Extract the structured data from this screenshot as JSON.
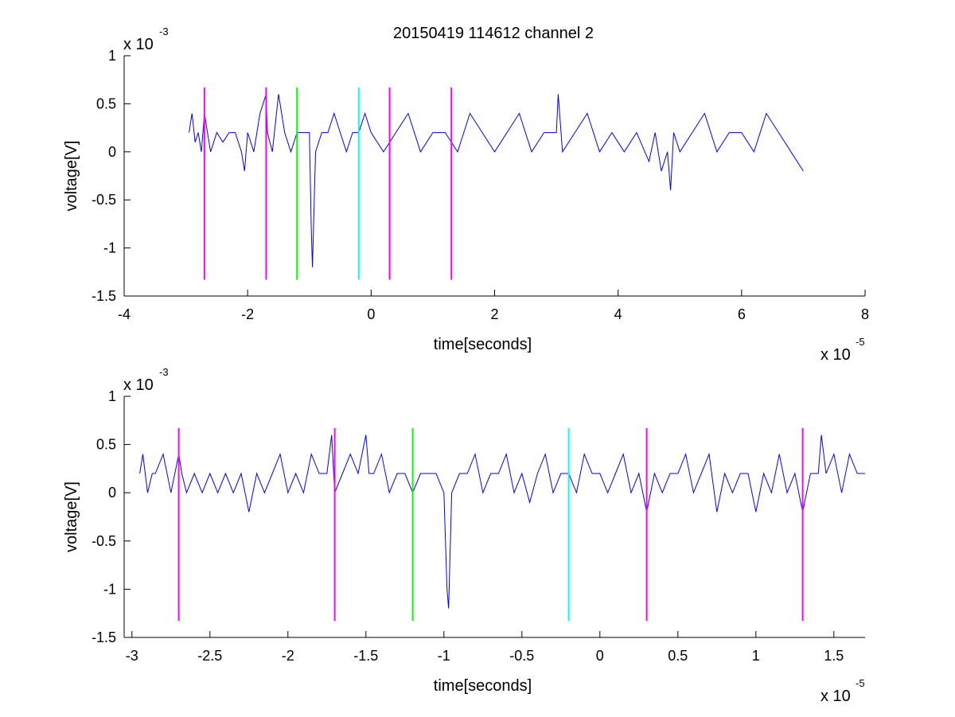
{
  "title": "20150419 114612 channel 2",
  "colors": {
    "trace": "#0000ff",
    "magenta": "#ff00ff",
    "green": "#00ff00",
    "cyan": "#00ffff",
    "axis": "#000000"
  },
  "chart_data": [
    {
      "type": "line",
      "xlabel": "time[seconds]",
      "ylabel": "voltage[V]",
      "x_multiplier": {
        "base": "x 10",
        "exp": "-5"
      },
      "y_multiplier": {
        "base": "x 10",
        "exp": "-3"
      },
      "xlim": [
        -4,
        8
      ],
      "ylim": [
        -1.5,
        1
      ],
      "xticks": [
        -4,
        -2,
        0,
        2,
        4,
        6,
        8
      ],
      "xtick_labels": [
        "-4",
        "-2",
        "0",
        "2",
        "4",
        "6",
        "8"
      ],
      "yticks": [
        -1.5,
        -1,
        -0.5,
        0,
        0.5,
        1
      ],
      "ytick_labels": [
        "-1.5",
        "-1",
        "-0.5",
        "0",
        "0.5",
        "1"
      ],
      "series": [
        {
          "color": "#0000ff",
          "x": [
            -2.95,
            -2.9,
            -2.85,
            -2.8,
            -2.75,
            -2.7,
            -2.65,
            -2.6,
            -2.5,
            -2.4,
            -2.3,
            -2.2,
            -2.1,
            -2.05,
            -2.0,
            -1.9,
            -1.8,
            -1.7,
            -1.68,
            -1.6,
            -1.5,
            -1.4,
            -1.3,
            -1.2,
            -1.1,
            -1.0,
            -0.97,
            -0.95,
            -0.9,
            -0.8,
            -0.7,
            -0.6,
            -0.5,
            -0.4,
            -0.3,
            -0.2,
            -0.1,
            0.0,
            0.2,
            0.4,
            0.6,
            0.8,
            1.0,
            1.2,
            1.4,
            1.6,
            1.8,
            2.0,
            2.2,
            2.4,
            2.6,
            2.8,
            3.0,
            3.03,
            3.1,
            3.3,
            3.5,
            3.7,
            3.9,
            4.1,
            4.3,
            4.5,
            4.6,
            4.7,
            4.8,
            4.85,
            4.9,
            5.0,
            5.2,
            5.4,
            5.6,
            5.8,
            6.0,
            6.2,
            6.4,
            6.6,
            6.8,
            7.0
          ],
          "y": [
            0.2,
            0.4,
            0.1,
            0.2,
            0.0,
            0.4,
            0.2,
            0.0,
            0.2,
            0.1,
            0.2,
            0.2,
            0.0,
            -0.2,
            0.2,
            0.0,
            0.4,
            0.6,
            0.2,
            0.0,
            0.6,
            0.2,
            0.0,
            0.2,
            0.2,
            0.2,
            -0.8,
            -1.2,
            0.0,
            0.2,
            0.2,
            0.4,
            0.2,
            0.0,
            0.2,
            0.2,
            0.4,
            0.2,
            0.0,
            0.2,
            0.4,
            0.0,
            0.2,
            0.2,
            0.0,
            0.4,
            0.2,
            0.0,
            0.2,
            0.4,
            0.0,
            0.2,
            0.2,
            0.6,
            0.0,
            0.2,
            0.4,
            0.0,
            0.2,
            0.0,
            0.2,
            -0.1,
            0.2,
            -0.2,
            0.0,
            -0.4,
            0.2,
            0.0,
            0.2,
            0.4,
            0.0,
            0.2,
            0.2,
            0.0,
            0.4,
            0.2,
            0.0,
            -0.2
          ]
        }
      ],
      "vlines": [
        {
          "x": -2.7,
          "color": "#ff00ff",
          "y0": -1.33,
          "y1": 0.67
        },
        {
          "x": -1.7,
          "color": "#ff00ff",
          "y0": -1.33,
          "y1": 0.67
        },
        {
          "x": -1.2,
          "color": "#00ff00",
          "y0": -1.33,
          "y1": 0.67
        },
        {
          "x": -0.2,
          "color": "#00ffff",
          "y0": -1.33,
          "y1": 0.67
        },
        {
          "x": 0.3,
          "color": "#ff00ff",
          "y0": -1.33,
          "y1": 0.67
        },
        {
          "x": 1.3,
          "color": "#ff00ff",
          "y0": -1.33,
          "y1": 0.67
        }
      ]
    },
    {
      "type": "line",
      "xlabel": "time[seconds]",
      "ylabel": "voltage[V]",
      "x_multiplier": {
        "base": "x 10",
        "exp": "-5"
      },
      "y_multiplier": {
        "base": "x 10",
        "exp": "-3"
      },
      "xlim": [
        -3.05,
        1.7
      ],
      "ylim": [
        -1.5,
        1
      ],
      "xticks": [
        -3,
        -2.5,
        -2,
        -1.5,
        -1,
        -0.5,
        0,
        0.5,
        1,
        1.5
      ],
      "xtick_labels": [
        "-3",
        "-2.5",
        "-2",
        "-1.5",
        "-1",
        "-0.5",
        "0",
        "0.5",
        "1",
        "1.5"
      ],
      "yticks": [
        -1.5,
        -1,
        -0.5,
        0,
        0.5,
        1
      ],
      "ytick_labels": [
        "-1.5",
        "-1",
        "-0.5",
        "0",
        "0.5",
        "1"
      ],
      "series": [
        {
          "color": "#0000ff",
          "x": [
            -2.95,
            -2.93,
            -2.9,
            -2.87,
            -2.85,
            -2.8,
            -2.75,
            -2.7,
            -2.68,
            -2.65,
            -2.6,
            -2.55,
            -2.5,
            -2.45,
            -2.4,
            -2.35,
            -2.3,
            -2.25,
            -2.2,
            -2.15,
            -2.1,
            -2.05,
            -2.0,
            -1.95,
            -1.9,
            -1.85,
            -1.8,
            -1.75,
            -1.72,
            -1.7,
            -1.65,
            -1.6,
            -1.55,
            -1.5,
            -1.48,
            -1.45,
            -1.4,
            -1.35,
            -1.3,
            -1.25,
            -1.2,
            -1.15,
            -1.1,
            -1.05,
            -1.0,
            -0.98,
            -0.97,
            -0.95,
            -0.9,
            -0.85,
            -0.8,
            -0.75,
            -0.7,
            -0.65,
            -0.6,
            -0.55,
            -0.5,
            -0.45,
            -0.4,
            -0.35,
            -0.3,
            -0.25,
            -0.2,
            -0.15,
            -0.1,
            -0.05,
            0.0,
            0.05,
            0.1,
            0.15,
            0.2,
            0.25,
            0.3,
            0.35,
            0.4,
            0.45,
            0.5,
            0.55,
            0.6,
            0.65,
            0.7,
            0.75,
            0.8,
            0.85,
            0.9,
            0.95,
            1.0,
            1.05,
            1.1,
            1.15,
            1.2,
            1.25,
            1.3,
            1.35,
            1.4,
            1.42,
            1.45,
            1.5,
            1.55,
            1.6,
            1.65,
            1.7
          ],
          "y": [
            0.2,
            0.4,
            0.0,
            0.2,
            0.2,
            0.4,
            0.0,
            0.4,
            0.2,
            0.0,
            0.2,
            0.0,
            0.2,
            0.0,
            0.2,
            0.0,
            0.2,
            -0.2,
            0.2,
            0.0,
            0.2,
            0.4,
            0.0,
            0.2,
            0.0,
            0.4,
            0.2,
            0.2,
            0.6,
            0.0,
            0.2,
            0.4,
            0.2,
            0.6,
            0.2,
            0.2,
            0.4,
            0.0,
            0.2,
            0.2,
            0.0,
            0.2,
            0.2,
            0.2,
            0.0,
            -1.0,
            -1.2,
            0.0,
            0.2,
            0.2,
            0.4,
            0.0,
            0.2,
            0.2,
            0.4,
            0.0,
            0.2,
            -0.1,
            0.2,
            0.4,
            0.0,
            0.2,
            0.2,
            0.0,
            0.4,
            0.2,
            0.2,
            0.0,
            0.2,
            0.4,
            0.0,
            0.2,
            -0.2,
            0.2,
            0.0,
            0.2,
            0.2,
            0.4,
            0.0,
            0.2,
            0.4,
            -0.2,
            0.2,
            0.0,
            0.2,
            0.2,
            -0.2,
            0.2,
            0.0,
            0.4,
            0.0,
            0.2,
            -0.2,
            0.2,
            0.2,
            0.6,
            0.2,
            0.4,
            0.0,
            0.4,
            0.2,
            0.2
          ]
        }
      ],
      "vlines": [
        {
          "x": -2.7,
          "color": "#ff00ff",
          "y0": -1.33,
          "y1": 0.67
        },
        {
          "x": -1.7,
          "color": "#ff00ff",
          "y0": -1.33,
          "y1": 0.67
        },
        {
          "x": -1.2,
          "color": "#00ff00",
          "y0": -1.33,
          "y1": 0.67
        },
        {
          "x": -0.2,
          "color": "#00ffff",
          "y0": -1.33,
          "y1": 0.67
        },
        {
          "x": 0.3,
          "color": "#ff00ff",
          "y0": -1.33,
          "y1": 0.67
        },
        {
          "x": 1.3,
          "color": "#ff00ff",
          "y0": -1.33,
          "y1": 0.67
        }
      ]
    }
  ]
}
